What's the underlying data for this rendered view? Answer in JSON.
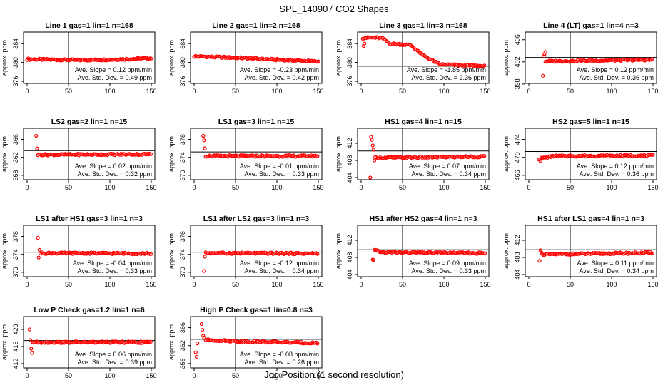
{
  "page": {
    "title": "SPL_140907  CO2 Shapes",
    "xlabel": "Jog Position (1 second resolution)"
  },
  "chart_data": [
    {
      "type": "scatter",
      "title": "Line 1 gas=1 lin=1 n=168",
      "ylabel": "approx. ppm",
      "xlim": [
        0,
        150
      ],
      "xticks": [
        0,
        50,
        100,
        150
      ],
      "ylim": [
        376,
        386
      ],
      "yticks": [
        376,
        380,
        384
      ],
      "vline": 50,
      "hline": null,
      "slope": "Ave. Slope =  0.12  ppm/min",
      "sd": "Ave. Std. Dev. =  0.49  ppm",
      "color": "#ff0000",
      "points": {
        "x_start": 0,
        "x_end": 150,
        "x_step": 1.5,
        "profile": [
          [
            0,
            380.7
          ],
          [
            60,
            380.5
          ],
          [
            100,
            380.6
          ],
          [
            150,
            380.9
          ]
        ],
        "outliers": []
      }
    },
    {
      "type": "scatter",
      "title": "Line 2 gas=1 lin=2 n=168",
      "ylabel": "approx. ppm",
      "xlim": [
        0,
        150
      ],
      "xticks": [
        0,
        50,
        100,
        150
      ],
      "ylim": [
        376,
        386
      ],
      "yticks": [
        376,
        380,
        384
      ],
      "vline": 50,
      "hline": null,
      "slope": "Ave. Slope = -0.23  ppm/min",
      "sd": "Ave. Std. Dev. =  0.42  ppm",
      "color": "#ff0000",
      "points": {
        "x_start": 0,
        "x_end": 150,
        "x_step": 1.5,
        "profile": [
          [
            0,
            381.3
          ],
          [
            50,
            381
          ],
          [
            100,
            380.6
          ],
          [
            150,
            380.2
          ]
        ],
        "outliers": []
      }
    },
    {
      "type": "scatter",
      "title": "Line 3 gas=1 lin=3 n=168",
      "ylabel": "approx. ppm",
      "xlim": [
        0,
        150
      ],
      "xticks": [
        0,
        50,
        100,
        150
      ],
      "ylim": [
        376,
        386
      ],
      "yticks": [
        376,
        380,
        384
      ],
      "vline": 50,
      "hline": 379.2,
      "slope": "Ave. Slope = -1.85  ppm/min",
      "sd": "Ave. Std. Dev. =  2.36  ppm",
      "color": "#ff0000",
      "points": {
        "x_start": 2,
        "x_end": 150,
        "x_step": 1.5,
        "profile": [
          [
            2,
            385.2
          ],
          [
            10,
            385.3
          ],
          [
            25,
            385.2
          ],
          [
            35,
            384
          ],
          [
            60,
            383.7
          ],
          [
            75,
            381.5
          ],
          [
            95,
            379.6
          ],
          [
            150,
            379.2
          ]
        ],
        "outliers": [
          [
            3,
            383.5
          ],
          [
            4,
            384
          ]
        ]
      }
    },
    {
      "type": "scatter",
      "title": "Line 4 (LT) gas=1 lin=4 n=3",
      "ylabel": "approx. ppm",
      "xlim": [
        0,
        150
      ],
      "xticks": [
        0,
        50,
        100,
        150
      ],
      "ylim": [
        398.5,
        407
      ],
      "yticks": [
        398,
        402,
        406
      ],
      "vline": 50,
      "hline": 402.8,
      "slope": "Ave. Slope =  0.12  ppm/min",
      "sd": "Ave. Std. Dev. =  0.36  ppm",
      "color": "#ff0000",
      "points": {
        "x_start": 20,
        "x_end": 150,
        "x_step": 1.5,
        "profile": [
          [
            20,
            402.1
          ],
          [
            150,
            402.4
          ]
        ],
        "outliers": [
          [
            17,
            399.5
          ],
          [
            18,
            403
          ],
          [
            19,
            403.4
          ],
          [
            20,
            403.8
          ]
        ]
      }
    },
    {
      "type": "scatter",
      "title": "LS2 gas=2 lin=1 n=15",
      "ylabel": "approx. ppm",
      "xlim": [
        0,
        150
      ],
      "xticks": [
        0,
        50,
        100,
        150
      ],
      "ylim": [
        357.5,
        368
      ],
      "yticks": [
        358,
        362,
        366
      ],
      "vline": 50,
      "hline": 363.5,
      "slope": "Ave. Slope =  0.02  ppm/min",
      "sd": "Ave. Std. Dev. =  0.32  ppm",
      "color": "#ff0000",
      "points": {
        "x_start": 13,
        "x_end": 150,
        "x_step": 1.5,
        "profile": [
          [
            13,
            362.6
          ],
          [
            150,
            362.7
          ]
        ],
        "outliers": [
          [
            11,
            366.8
          ],
          [
            12,
            364
          ]
        ]
      }
    },
    {
      "type": "scatter",
      "title": "LS1 gas=3 lin=1 n=15",
      "ylabel": "approx. ppm",
      "xlim": [
        0,
        150
      ],
      "xticks": [
        0,
        50,
        100,
        150
      ],
      "ylim": [
        369.5,
        380
      ],
      "yticks": [
        370,
        374,
        378
      ],
      "vline": 50,
      "hline": 375.2,
      "slope": "Ave. Slope = -0.01  ppm/min",
      "sd": "Ave. Std. Dev. =  0.33  ppm",
      "color": "#ff0000",
      "points": {
        "x_start": 14,
        "x_end": 150,
        "x_step": 1.5,
        "profile": [
          [
            14,
            374.3
          ],
          [
            150,
            374.3
          ]
        ],
        "outliers": [
          [
            11,
            378.8
          ],
          [
            12,
            377.8
          ],
          [
            13,
            376
          ]
        ]
      }
    },
    {
      "type": "scatter",
      "title": "HS1 gas=4 lin=1 n=15",
      "ylabel": "approx. ppm",
      "xlim": [
        0,
        150
      ],
      "xticks": [
        0,
        50,
        100,
        150
      ],
      "ylim": [
        404,
        415
      ],
      "yticks": [
        404,
        408,
        412
      ],
      "vline": 50,
      "hline": 410.2,
      "slope": "Ave. Slope =  0.07  ppm/min",
      "sd": "Ave. Std. Dev. =  0.34  ppm",
      "color": "#ff0000",
      "points": {
        "x_start": 17,
        "x_end": 150,
        "x_step": 1.5,
        "profile": [
          [
            17,
            408.6
          ],
          [
            150,
            408.9
          ]
        ],
        "outliers": [
          [
            11,
            404
          ],
          [
            12,
            413.5
          ],
          [
            13,
            412.8
          ],
          [
            14,
            411.5
          ],
          [
            15,
            410.5
          ],
          [
            16,
            408
          ]
        ]
      }
    },
    {
      "type": "scatter",
      "title": "HS2 gas=5 lin=1 n=15",
      "ylabel": "approx. ppm",
      "xlim": [
        0,
        150
      ],
      "xticks": [
        0,
        50,
        100,
        150
      ],
      "ylim": [
        465.5,
        476
      ],
      "yticks": [
        466,
        470,
        474
      ],
      "vline": 50,
      "hline": 471.3,
      "slope": "Ave. Slope =  0.12  ppm/min",
      "sd": "Ave. Std. Dev. =  0.36  ppm",
      "color": "#ff0000",
      "points": {
        "x_start": 12,
        "x_end": 150,
        "x_step": 1.5,
        "profile": [
          [
            12,
            469.7
          ],
          [
            30,
            470.3
          ],
          [
            150,
            470.4
          ]
        ],
        "outliers": [
          [
            14,
            469.2
          ]
        ]
      }
    },
    {
      "type": "scatter",
      "title": "LS1 after HS1 gas=3 lin=1 n=3",
      "ylabel": "approx. ppm",
      "xlim": [
        0,
        150
      ],
      "xticks": [
        0,
        50,
        100,
        150
      ],
      "ylim": [
        369.5,
        380
      ],
      "yticks": [
        370,
        374,
        378
      ],
      "vline": 50,
      "hline": 374.5,
      "slope": "Ave. Slope = -0.04  ppm/min",
      "sd": "Ave. Std. Dev. =  0.33  ppm",
      "color": "#ff0000",
      "points": {
        "x_start": 16,
        "x_end": 150,
        "x_step": 1.5,
        "profile": [
          [
            16,
            374.3
          ],
          [
            150,
            374.2
          ]
        ],
        "outliers": [
          [
            13,
            377.7
          ],
          [
            14,
            373.3
          ],
          [
            15,
            375
          ]
        ]
      }
    },
    {
      "type": "scatter",
      "title": "LS1 after LS2 gas=3 lin=1 n=3",
      "ylabel": "approx. ppm",
      "xlim": [
        0,
        150
      ],
      "xticks": [
        0,
        50,
        100,
        150
      ],
      "ylim": [
        369.5,
        380
      ],
      "yticks": [
        370,
        374,
        378
      ],
      "vline": 50,
      "hline": 374.5,
      "slope": "Ave. Slope = -0.12  ppm/min",
      "sd": "Ave. Std. Dev. =  0.34  ppm",
      "color": "#ff0000",
      "points": {
        "x_start": 14,
        "x_end": 150,
        "x_step": 1.5,
        "profile": [
          [
            14,
            374.3
          ],
          [
            150,
            374.2
          ]
        ],
        "outliers": [
          [
            12,
            370.3
          ],
          [
            13,
            373.5
          ]
        ]
      }
    },
    {
      "type": "scatter",
      "title": "HS1 after HS2 gas=4 lin=1 n=3",
      "ylabel": "approx. ppm",
      "xlim": [
        0,
        150
      ],
      "xticks": [
        0,
        50,
        100,
        150
      ],
      "ylim": [
        404,
        415
      ],
      "yticks": [
        404,
        408,
        412
      ],
      "vline": 50,
      "hline": 409.8,
      "slope": "Ave. Slope =  0.09  ppm/min",
      "sd": "Ave. Std. Dev. =  0.33  ppm",
      "color": "#ff0000",
      "points": {
        "x_start": 16,
        "x_end": 150,
        "x_step": 1.5,
        "profile": [
          [
            16,
            409.7
          ],
          [
            25,
            409.2
          ],
          [
            150,
            409
          ]
        ],
        "outliers": [
          [
            14,
            407.5
          ],
          [
            15,
            407.4
          ]
        ]
      }
    },
    {
      "type": "scatter",
      "title": "HS1 after LS1 gas=4 lin=1 n=3",
      "ylabel": "approx. ppm",
      "xlim": [
        0,
        150
      ],
      "xticks": [
        0,
        50,
        100,
        150
      ],
      "ylim": [
        404,
        415
      ],
      "yticks": [
        404,
        408,
        412
      ],
      "vline": 50,
      "hline": 409.8,
      "slope": "Ave. Slope =  0.11  ppm/min",
      "sd": "Ave. Std. Dev. =  0.34  ppm",
      "color": "#ff0000",
      "points": {
        "x_start": 16,
        "x_end": 150,
        "x_step": 1.5,
        "profile": [
          [
            16,
            408.7
          ],
          [
            150,
            409.1
          ]
        ],
        "outliers": [
          [
            13,
            407.2
          ],
          [
            14,
            409.7
          ],
          [
            15,
            409.2
          ]
        ]
      }
    },
    {
      "type": "scatter",
      "title": "Low P Check gas=1.2 lin=1 n=6",
      "ylabel": "approx. ppm",
      "xlim": [
        0,
        150
      ],
      "xticks": [
        0,
        50,
        100,
        150
      ],
      "ylim": [
        411.5,
        422.5
      ],
      "yticks": [
        412,
        416,
        420
      ],
      "vline": 50,
      "hline": 417.4,
      "slope": "Ave. Slope =  0.06  ppm/min",
      "sd": "Ave. Std. Dev. =  0.39  ppm",
      "color": "#ff0000",
      "points": {
        "x_start": 7,
        "x_end": 150,
        "x_step": 1.5,
        "profile": [
          [
            7,
            417
          ],
          [
            150,
            417
          ]
        ],
        "outliers": [
          [
            3,
            420
          ],
          [
            4,
            417.5
          ],
          [
            5,
            415.5
          ],
          [
            6,
            414.5
          ]
        ]
      }
    },
    {
      "type": "scatter",
      "title": "High P Check gas=1 lin=0.8 n=3",
      "ylabel": "approx. ppm",
      "xlim": [
        0,
        150
      ],
      "xticks": [
        0,
        50,
        100,
        150
      ],
      "ylim": [
        357.5,
        368
      ],
      "yticks": [
        358,
        362,
        366
      ],
      "vline": 50,
      "hline": 363.4,
      "slope": "Ave. Slope = -0.08  ppm/min",
      "sd": "Ave. Std. Dev. =  0.26  ppm",
      "color": "#ff0000",
      "points": {
        "x_start": 14,
        "x_end": 150,
        "x_step": 1.5,
        "profile": [
          [
            14,
            363.3
          ],
          [
            60,
            362.9
          ],
          [
            150,
            362.6
          ]
        ],
        "outliers": [
          [
            2,
            360.5
          ],
          [
            3,
            359.5
          ],
          [
            4,
            362.5
          ],
          [
            9,
            366.8
          ],
          [
            10,
            365.5
          ],
          [
            11,
            364.2
          ],
          [
            12,
            363.8
          ]
        ]
      }
    }
  ]
}
